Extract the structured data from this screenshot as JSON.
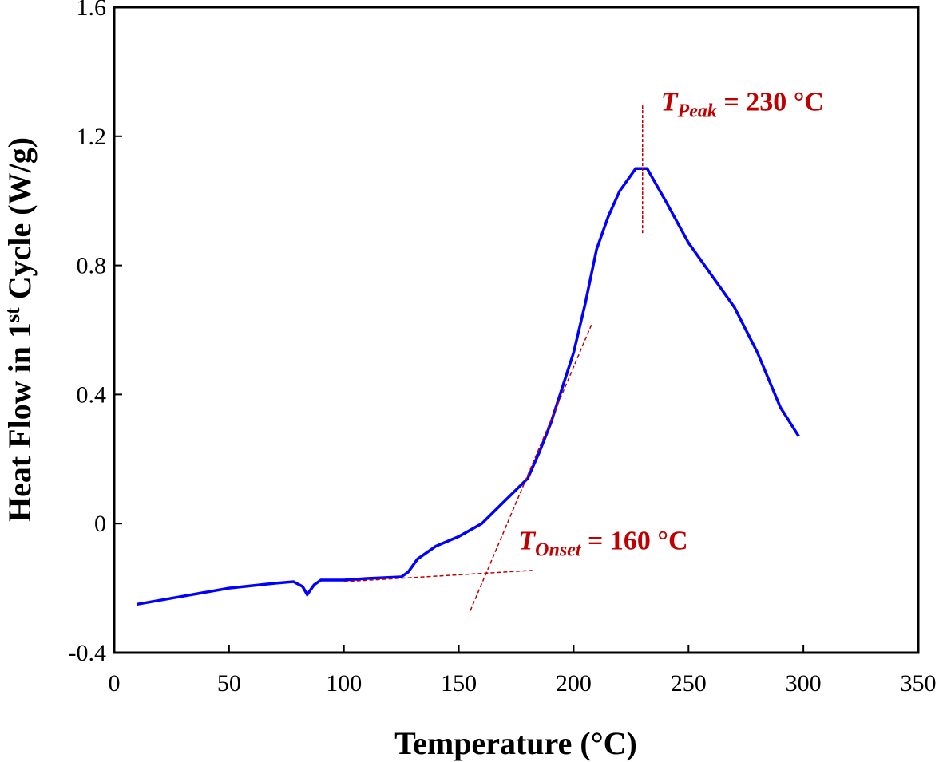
{
  "chart_data": {
    "type": "line",
    "xlabel": "Temperature (°C)",
    "ylabel_parts": {
      "pre": "Heat Flow in 1",
      "sup": "st",
      "post": " Cycle (W/g)"
    },
    "xlim": [
      0,
      350
    ],
    "ylim": [
      -0.4,
      1.6
    ],
    "xticks": [
      "0",
      "50",
      "100",
      "150",
      "200",
      "250",
      "300",
      "350"
    ],
    "yticks": [
      "-0.4",
      "0",
      "0.4",
      "0.8",
      "1.2",
      "1.6"
    ],
    "grid": false,
    "series": [
      {
        "name": "Heat Flow",
        "color": "#0000ff",
        "x": [
          10,
          30,
          50,
          70,
          78,
          82,
          84,
          87,
          90,
          100,
          110,
          125,
          128,
          132,
          140,
          150,
          160,
          170,
          180,
          185,
          190,
          195,
          200,
          205,
          210,
          215,
          220,
          225,
          227,
          232,
          240,
          250,
          260,
          270,
          280,
          290,
          298
        ],
        "y": [
          -0.25,
          -0.225,
          -0.2,
          -0.185,
          -0.18,
          -0.195,
          -0.22,
          -0.19,
          -0.175,
          -0.175,
          -0.17,
          -0.165,
          -0.15,
          -0.11,
          -0.07,
          -0.04,
          0.0,
          0.07,
          0.14,
          0.22,
          0.31,
          0.42,
          0.53,
          0.68,
          0.85,
          0.95,
          1.03,
          1.08,
          1.1,
          1.1,
          1.0,
          0.87,
          0.77,
          0.67,
          0.53,
          0.36,
          0.27
        ]
      }
    ],
    "annotations": [
      {
        "id": "peak",
        "label_main": "T",
        "label_sub": "Peak",
        "label_rest": " = 230 °C",
        "line": {
          "x": [
            230,
            230
          ],
          "y": [
            0.9,
            1.3
          ]
        },
        "text_at": [
          238,
          1.28
        ]
      },
      {
        "id": "onset",
        "label_main": "T",
        "label_sub": "Onset",
        "label_rest": " = 160 °C",
        "text_at": [
          176,
          -0.08
        ]
      }
    ],
    "tangent_lines": [
      {
        "x": [
          100,
          182
        ],
        "y": [
          -0.18,
          -0.145
        ]
      },
      {
        "x": [
          155,
          208
        ],
        "y": [
          -0.27,
          0.62
        ]
      }
    ],
    "annotation_color": "#c00000"
  }
}
